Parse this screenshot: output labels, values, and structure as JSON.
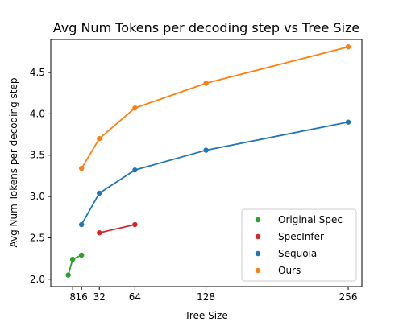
{
  "chart_data": {
    "type": "line",
    "title": "Avg Num Tokens per decoding step vs Tree Size",
    "xlabel": "Tree Size",
    "ylabel": "Avg Num Tokens per decoding step",
    "x_ticks": [
      {
        "value": 8,
        "label": "8"
      },
      {
        "value": 16,
        "label": "16"
      },
      {
        "value": 32,
        "label": "32"
      },
      {
        "value": 64,
        "label": "64"
      },
      {
        "value": 128,
        "label": "128"
      },
      {
        "value": 256,
        "label": "256"
      }
    ],
    "y_ticks": [
      {
        "value": 2.0,
        "label": "2.0"
      },
      {
        "value": 2.5,
        "label": "2.5"
      },
      {
        "value": 3.0,
        "label": "3.0"
      },
      {
        "value": 3.5,
        "label": "3.5"
      },
      {
        "value": 4.0,
        "label": "4.0"
      },
      {
        "value": 4.5,
        "label": "4.5"
      }
    ],
    "xlim": [
      -11.7,
      268.3
    ],
    "ylim": [
      1.91,
      4.9
    ],
    "grid": false,
    "legend_position": "lower-right",
    "series": [
      {
        "name": "Original Spec",
        "color": "#2ca02c",
        "x": [
          4,
          8,
          16
        ],
        "y": [
          2.05,
          2.24,
          2.29
        ]
      },
      {
        "name": "SpecInfer",
        "color": "#d62728",
        "x": [
          32,
          64
        ],
        "y": [
          2.56,
          2.66
        ]
      },
      {
        "name": "Sequoia",
        "color": "#1f77b4",
        "x": [
          16,
          32,
          64,
          128,
          256
        ],
        "y": [
          2.66,
          3.04,
          3.32,
          3.56,
          3.9
        ]
      },
      {
        "name": "Ours",
        "color": "#ff7f0e",
        "x": [
          16,
          32,
          64,
          128,
          256
        ],
        "y": [
          3.34,
          3.7,
          4.07,
          4.37,
          4.81
        ]
      }
    ]
  }
}
